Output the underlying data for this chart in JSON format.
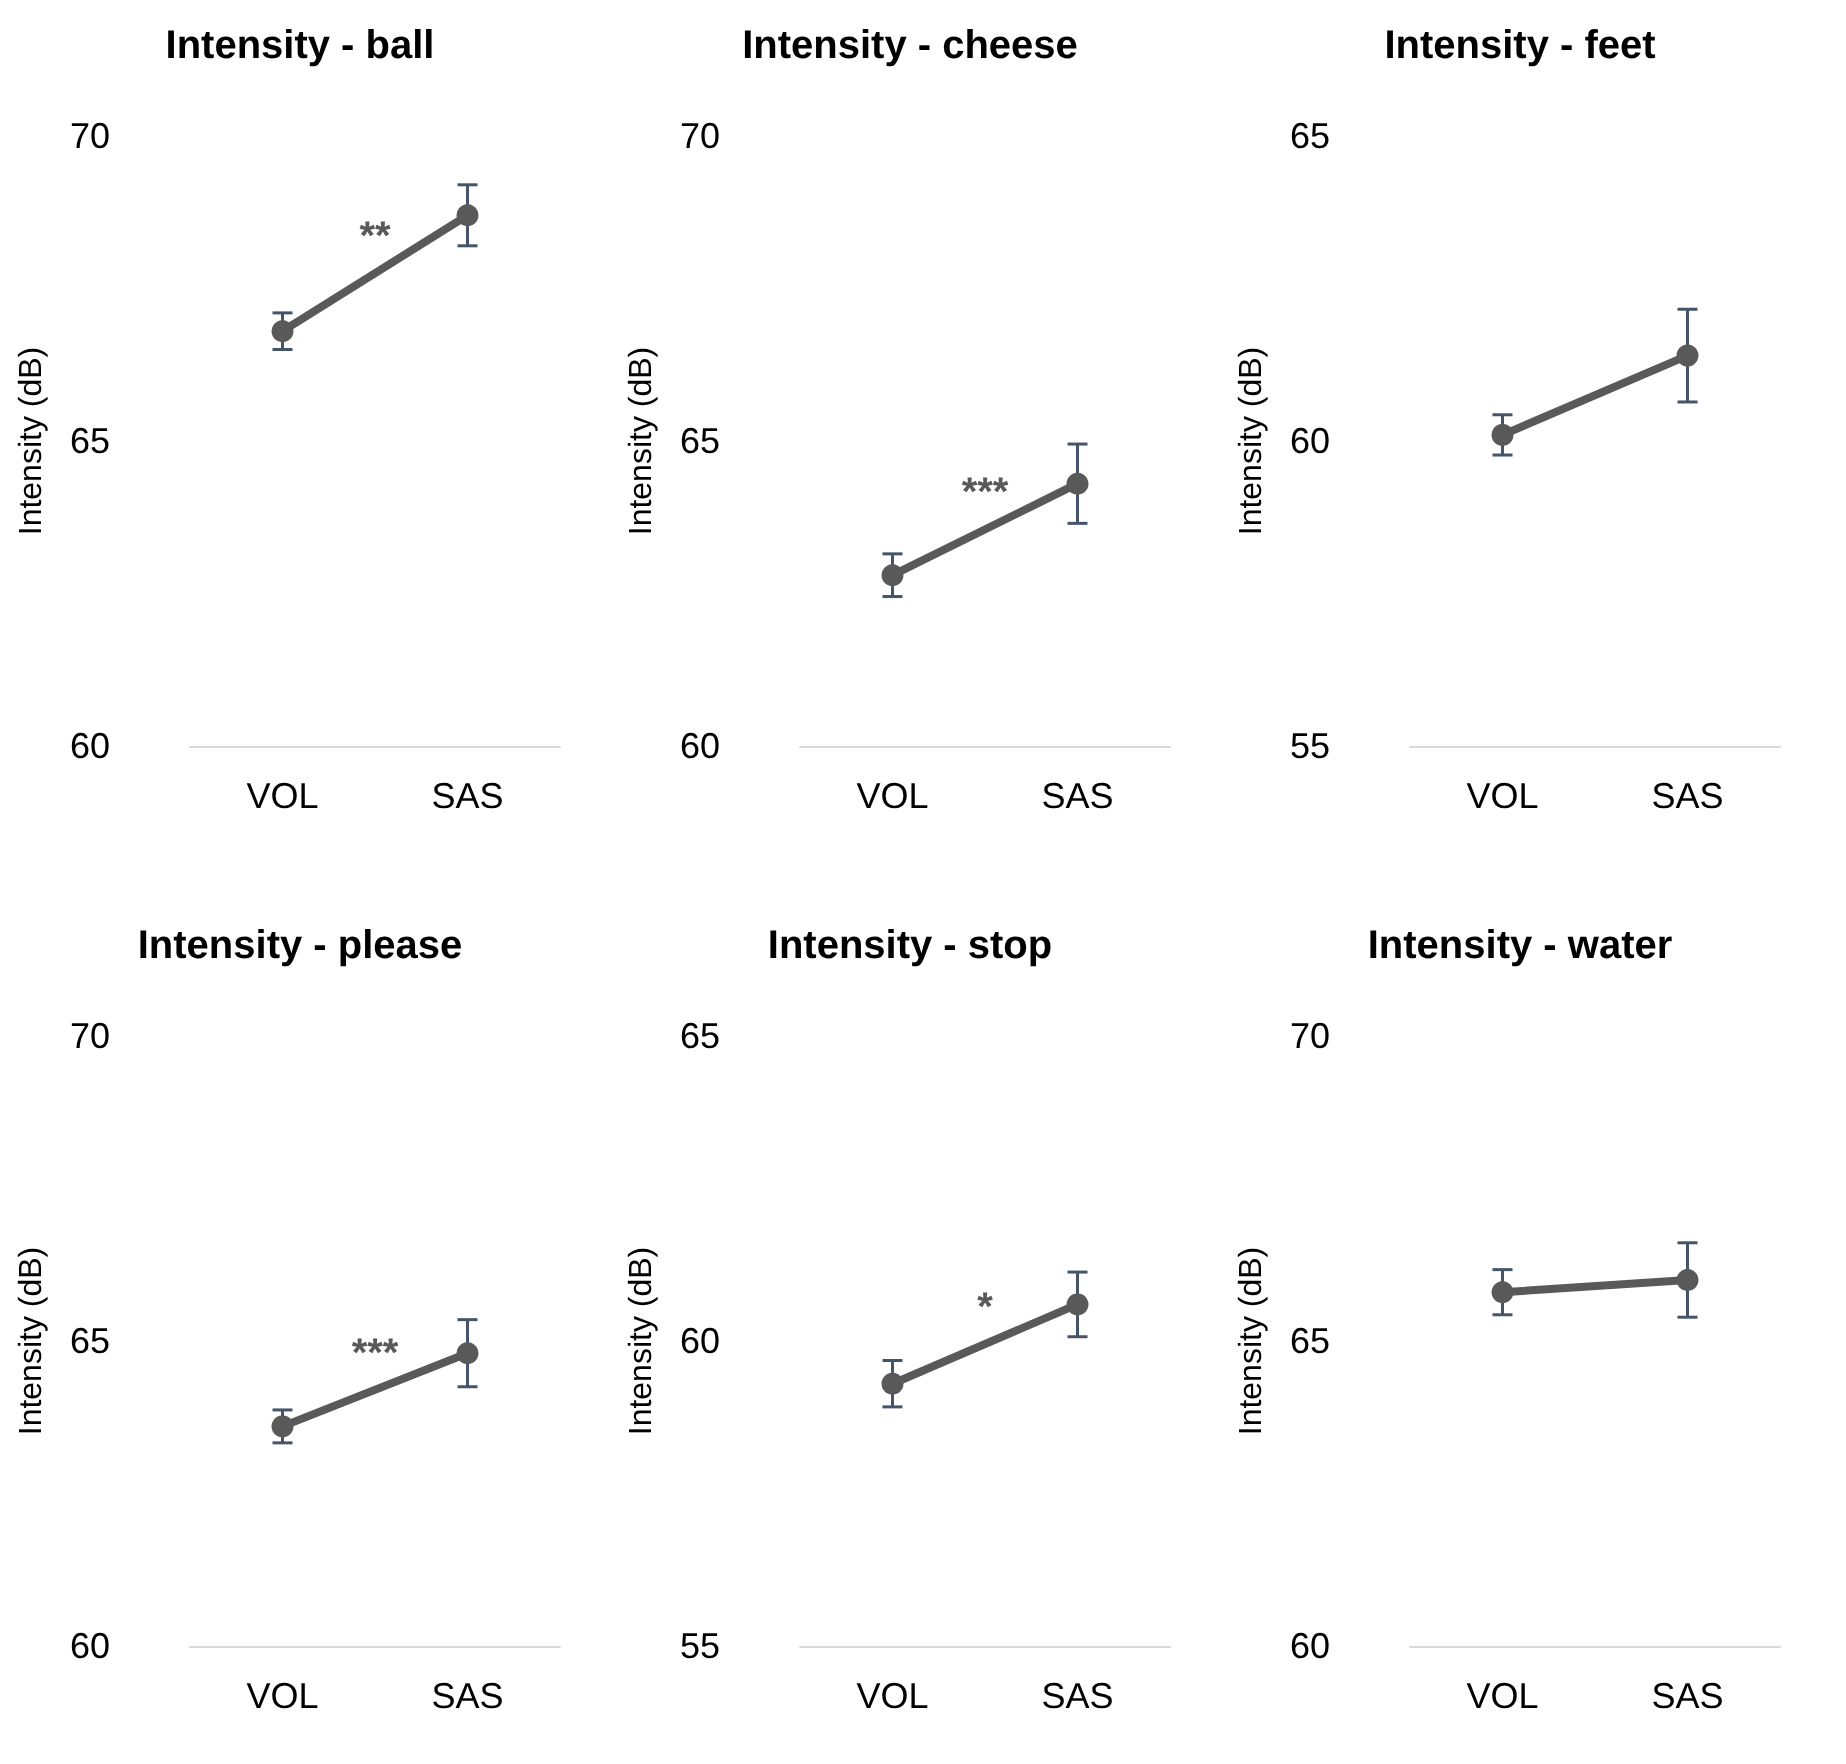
{
  "chart_data": [
    {
      "type": "line",
      "title": "Intensity - ball",
      "ylabel": "Intensity (dB)",
      "categories": [
        "VOL",
        "SAS"
      ],
      "series": [
        {
          "color": "#595959",
          "values": [
            66.8,
            68.7
          ],
          "errors": [
            0.3,
            0.5
          ]
        }
      ],
      "ylim": [
        60,
        70
      ],
      "yticks": [
        60,
        65,
        70
      ],
      "grid": false,
      "marker": "circle",
      "line_style": "solid",
      "annotations": [
        "**"
      ]
    },
    {
      "type": "line",
      "title": "Intensity - cheese",
      "ylabel": "Intensity (dB)",
      "categories": [
        "VOL",
        "SAS"
      ],
      "series": [
        {
          "color": "#595959",
          "values": [
            62.8,
            64.3
          ],
          "errors": [
            0.35,
            0.65
          ]
        }
      ],
      "ylim": [
        60,
        70
      ],
      "yticks": [
        60,
        65,
        70
      ],
      "grid": false,
      "marker": "circle",
      "line_style": "solid",
      "annotations": [
        "***"
      ]
    },
    {
      "type": "line",
      "title": "Intensity - feet",
      "ylabel": "Intensity (dB)",
      "categories": [
        "VOL",
        "SAS"
      ],
      "series": [
        {
          "color": "#595959",
          "values": [
            60.1,
            61.4
          ],
          "errors": [
            0.33,
            0.76
          ]
        }
      ],
      "ylim": [
        55,
        65
      ],
      "yticks": [
        55,
        60,
        65
      ],
      "grid": false,
      "marker": "circle",
      "line_style": "solid"
    },
    {
      "type": "line",
      "title": "Intensity - please",
      "ylabel": "Intensity (dB)",
      "categories": [
        "VOL",
        "SAS"
      ],
      "series": [
        {
          "color": "#595959",
          "values": [
            63.6,
            64.8
          ],
          "errors": [
            0.27,
            0.55
          ]
        }
      ],
      "ylim": [
        60,
        70
      ],
      "yticks": [
        60,
        65,
        70
      ],
      "grid": false,
      "marker": "circle",
      "line_style": "solid",
      "annotations": [
        "***"
      ]
    },
    {
      "type": "line",
      "title": "Intensity - stop",
      "ylabel": "Intensity (dB)",
      "categories": [
        "VOL",
        "SAS"
      ],
      "series": [
        {
          "color": "#595959",
          "values": [
            59.3,
            60.6
          ],
          "errors": [
            0.38,
            0.53
          ]
        }
      ],
      "ylim": [
        55,
        65
      ],
      "yticks": [
        55,
        60,
        65
      ],
      "grid": false,
      "marker": "circle",
      "line_style": "solid",
      "annotations": [
        "*"
      ]
    },
    {
      "type": "line",
      "title": "Intensity - water",
      "ylabel": "Intensity (dB)",
      "categories": [
        "VOL",
        "SAS"
      ],
      "series": [
        {
          "color": "#595959",
          "values": [
            65.8,
            66.0
          ],
          "errors": [
            0.37,
            0.61
          ]
        }
      ],
      "ylim": [
        60,
        70
      ],
      "yticks": [
        60,
        65,
        70
      ],
      "grid": false,
      "marker": "circle",
      "line_style": "solid"
    }
  ]
}
